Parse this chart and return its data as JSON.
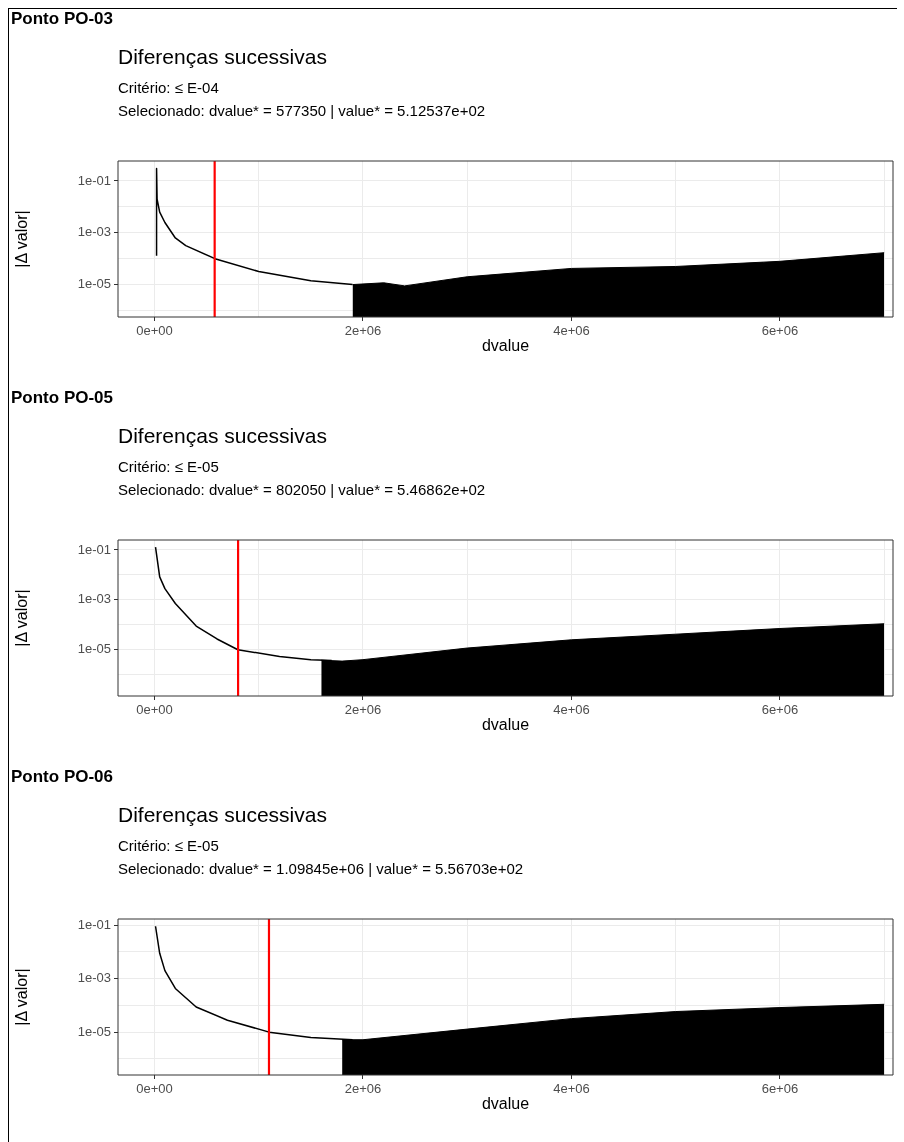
{
  "chart_data": [
    {
      "type": "line",
      "annotations": [
        "Ponto PO-03"
      ],
      "title": "Diferenças sucessivas",
      "subtitle": "Critério: ≤ E-04\nSelecionado: dvalue* = 577350 | value* = 5.12537e+02",
      "xlabel": "dvalue",
      "ylabel": "|Δ valor|",
      "log": "y",
      "grid": true,
      "xlim": [
        -350000,
        7085000
      ],
      "xticks": [
        {
          "value": 0,
          "label": "0e+00"
        },
        {
          "value": 1000000,
          "label": null
        },
        {
          "value": 2000000,
          "label": "2e+06"
        },
        {
          "value": 3000000,
          "label": null
        },
        {
          "value": 4000000,
          "label": "4e+06"
        },
        {
          "value": 5000000,
          "label": null
        },
        {
          "value": 6000000,
          "label": "6e+06"
        },
        {
          "value": 7000000,
          "label": null
        }
      ],
      "ylim": [
        5.6e-07,
        0.59
      ],
      "yticks": [
        {
          "value": 0.1,
          "label": "1e-01"
        },
        {
          "value": 0.01,
          "label": null
        },
        {
          "value": 0.001,
          "label": "1e-03"
        },
        {
          "value": 0.0001,
          "label": null
        },
        {
          "value": 1e-05,
          "label": "1e-05"
        },
        {
          "value": 1e-06,
          "label": null
        }
      ],
      "ref_lines": [
        {
          "axis": "x",
          "value": 577350,
          "color": "#ff0000"
        }
      ],
      "series": [
        {
          "type": "line",
          "color": "#000000",
          "x": [
            20000,
            20000,
            25000,
            50000,
            100000,
            200000,
            300000,
            580000,
            1000000,
            1500000,
            1900000
          ],
          "values": [
            0.00013,
            0.3,
            0.02,
            0.0063,
            0.0025,
            0.00063,
            0.00032,
            0.0001,
            3.2e-05,
            1.4e-05,
            1e-05
          ]
        },
        {
          "type": "area",
          "color": "#000000",
          "x": [
            1900000,
            2200000,
            2400000,
            3000000,
            4000000,
            5000000,
            6000000,
            7000000
          ],
          "values": [
            1e-05,
            1.17e-05,
            8.9e-06,
            2e-05,
            4.2e-05,
            5e-05,
            7.9e-05,
            0.00017
          ]
        }
      ]
    },
    {
      "type": "line",
      "annotations": [
        "Ponto PO-05"
      ],
      "title": "Diferenças sucessivas",
      "subtitle": "Critério: ≤ E-05\nSelecionado: dvalue* = 802050 | value* = 5.46862e+02",
      "xlabel": "dvalue",
      "ylabel": "|Δ valor|",
      "log": "y",
      "grid": true,
      "xlim": [
        -350000,
        7085000
      ],
      "xticks": [
        {
          "value": 0,
          "label": "0e+00"
        },
        {
          "value": 1000000,
          "label": null
        },
        {
          "value": 2000000,
          "label": "2e+06"
        },
        {
          "value": 3000000,
          "label": null
        },
        {
          "value": 4000000,
          "label": "4e+06"
        },
        {
          "value": 5000000,
          "label": null
        },
        {
          "value": 6000000,
          "label": "6e+06"
        },
        {
          "value": 7000000,
          "label": null
        }
      ],
      "ylim": [
        1.4e-07,
        0.25
      ],
      "yticks": [
        {
          "value": 0.1,
          "label": "1e-01"
        },
        {
          "value": 0.01,
          "label": null
        },
        {
          "value": 0.001,
          "label": "1e-03"
        },
        {
          "value": 0.0001,
          "label": null
        },
        {
          "value": 1e-05,
          "label": "1e-05"
        },
        {
          "value": 1e-06,
          "label": null
        }
      ],
      "ref_lines": [
        {
          "axis": "x",
          "value": 802050,
          "color": "#ff0000"
        }
      ],
      "series": [
        {
          "type": "line",
          "color": "#000000",
          "x": [
            10000,
            50000,
            100000,
            200000,
            400000,
            600000,
            800000,
            1200000,
            1500000,
            1700000
          ],
          "values": [
            0.13,
            0.0083,
            0.0028,
            0.00071,
            8.9e-05,
            2.7e-05,
            1e-05,
            5.4e-06,
            4e-06,
            3.7e-06
          ]
        },
        {
          "type": "area",
          "color": "#000000",
          "x": [
            1600000,
            1800000,
            2000000,
            3000000,
            4000000,
            5000000,
            6000000,
            7000000
          ],
          "values": [
            3.8e-06,
            3.5e-06,
            4e-06,
            1.17e-05,
            2.5e-05,
            4.2e-05,
            7.1e-05,
            0.00011
          ]
        }
      ]
    },
    {
      "type": "line",
      "annotations": [
        "Ponto PO-06"
      ],
      "title": "Diferenças sucessivas",
      "subtitle": "Critério: ≤ E-05\nSelecionado: dvalue* = 1.09845e+06 | value* = 5.56703e+02",
      "xlabel": "dvalue",
      "ylabel": "|Δ valor|",
      "log": "y",
      "grid": true,
      "xlim": [
        -350000,
        7085000
      ],
      "xticks": [
        {
          "value": 0,
          "label": "0e+00"
        },
        {
          "value": 1000000,
          "label": null
        },
        {
          "value": 2000000,
          "label": "2e+06"
        },
        {
          "value": 3000000,
          "label": null
        },
        {
          "value": 4000000,
          "label": "4e+06"
        },
        {
          "value": 5000000,
          "label": null
        },
        {
          "value": 6000000,
          "label": "6e+06"
        },
        {
          "value": 7000000,
          "label": null
        }
      ],
      "ylim": [
        2.5e-07,
        0.17
      ],
      "yticks": [
        {
          "value": 0.1,
          "label": "1e-01"
        },
        {
          "value": 0.01,
          "label": null
        },
        {
          "value": 0.001,
          "label": "1e-03"
        },
        {
          "value": 0.0001,
          "label": null
        },
        {
          "value": 1e-05,
          "label": "1e-05"
        },
        {
          "value": 1e-06,
          "label": null
        }
      ],
      "ref_lines": [
        {
          "axis": "x",
          "value": 1098450,
          "color": "#ff0000"
        }
      ],
      "series": [
        {
          "type": "line",
          "color": "#000000",
          "x": [
            10000,
            50000,
            100000,
            200000,
            400000,
            700000,
            1100000,
            1500000,
            1900000
          ],
          "values": [
            0.091,
            0.0089,
            0.002,
            0.00043,
            8.7e-05,
            2.8e-05,
            1e-05,
            6.3e-06,
            5.2e-06
          ]
        },
        {
          "type": "area",
          "color": "#000000",
          "x": [
            1800000,
            2000000,
            3000000,
            4000000,
            5000000,
            6000000,
            7000000
          ],
          "values": [
            5.2e-06,
            5.2e-06,
            1.3e-05,
            3.2e-05,
            5.9e-05,
            8.3e-05,
            0.00011
          ]
        }
      ]
    }
  ]
}
